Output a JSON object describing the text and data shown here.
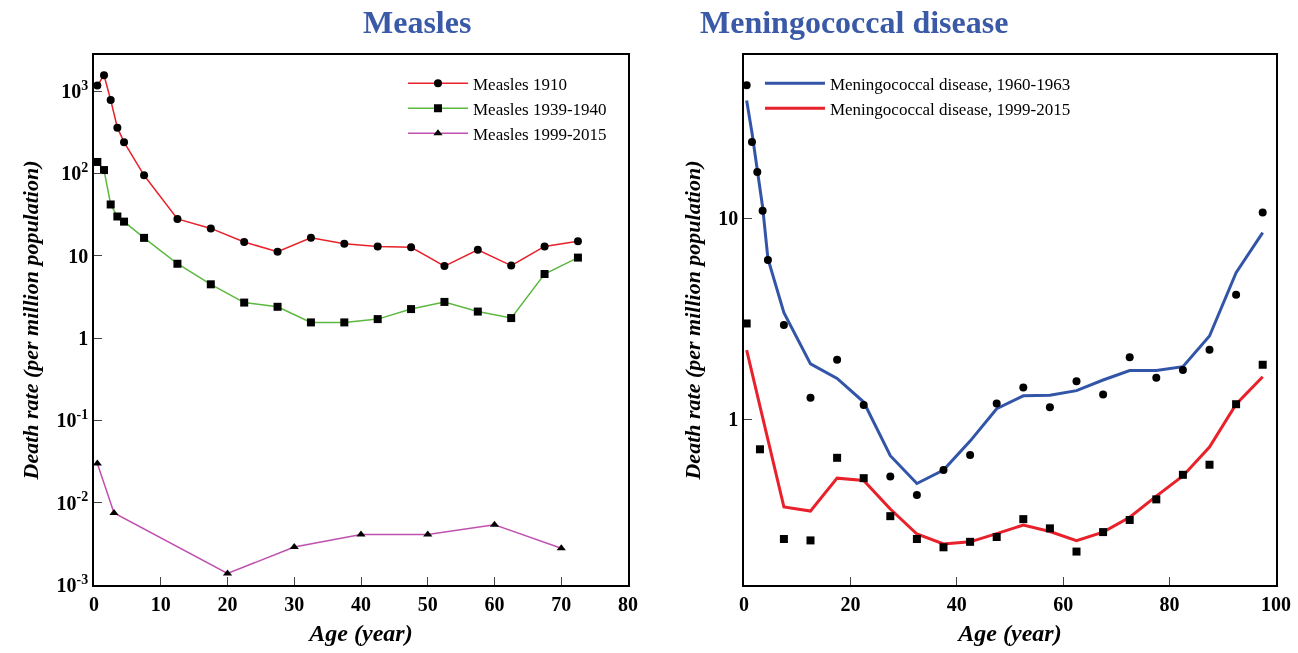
{
  "chart_data": [
    {
      "type": "line",
      "title": "Measles",
      "xlabel": "Age (year)",
      "ylabel": "Death rate (per million population)",
      "log": "y",
      "xlim": [
        0,
        80
      ],
      "xticks": [
        0,
        10,
        20,
        30,
        40,
        50,
        60,
        70,
        80
      ],
      "ylim": [
        0.001,
        2750
      ],
      "yticks": [
        {
          "value": 0.001,
          "label": "10$^{-3}$"
        },
        {
          "value": 0.01,
          "label": "10$^{-2}$"
        },
        {
          "value": 0.1,
          "label": "10$^{-1}$"
        },
        1,
        10,
        {
          "value": 100,
          "label": "10$^{2}$"
        },
        {
          "value": 1000,
          "label": "10$^{3}$"
        }
      ],
      "legend": "top right",
      "series": [
        {
          "name": "Measles 1910",
          "color": "#e8212b",
          "marker": "circle",
          "x": [
            0.5,
            1.5,
            2.5,
            3.5,
            4.5,
            7.5,
            12.5,
            17.5,
            22.5,
            27.5,
            32.5,
            37.5,
            42.5,
            47.5,
            52.5,
            57.5,
            62.5,
            67.5,
            72.5
          ],
          "values": [
            1170,
            1560,
            780,
            360,
            240,
            95,
            28,
            21.5,
            14.7,
            11.2,
            16.5,
            14,
            13,
            12.7,
            7.5,
            11.8,
            7.6,
            13,
            15
          ]
        },
        {
          "name": "Measles 1939-1940",
          "color": "#5cb840",
          "marker": "square",
          "x": [
            0.5,
            1.5,
            2.5,
            3.5,
            4.5,
            7.5,
            12.5,
            17.5,
            22.5,
            27.5,
            32.5,
            37.5,
            42.5,
            47.5,
            52.5,
            57.5,
            62.5,
            67.5,
            72.5
          ],
          "values": [
            138,
            110,
            42,
            30,
            26,
            16.5,
            8.0,
            4.5,
            2.7,
            2.4,
            1.55,
            1.55,
            1.7,
            2.25,
            2.75,
            2.1,
            1.75,
            6.0,
            9.5
          ]
        },
        {
          "name": "Measles 1999-2015",
          "color": "#c050b0",
          "marker": "triangle",
          "x": [
            0.5,
            3,
            20,
            30,
            40,
            50,
            60,
            70
          ],
          "values": [
            0.03,
            0.0075,
            0.00138,
            0.0029,
            0.0041,
            0.0041,
            0.0054,
            0.0028
          ]
        }
      ]
    },
    {
      "type": "line",
      "title": "Meningococcal disease",
      "xlabel": "Age (year)",
      "ylabel": "Death rate (per million population)",
      "log": "y",
      "xlim": [
        0,
        100
      ],
      "xticks": [
        0,
        20,
        40,
        60,
        80,
        100
      ],
      "ylim": [
        0.15,
        65
      ],
      "yticks": [
        1,
        10
      ],
      "legend": "top left",
      "series": [
        {
          "name": "Meningococcal disease, 1960-1963",
          "color": "#3355a8",
          "x": [
            0.5,
            1.5,
            2.5,
            3.5,
            4.5,
            7.5,
            12.5,
            17.5,
            22.5,
            27.5,
            32.5,
            37.5,
            42.5,
            47.5,
            52.5,
            57.5,
            62.5,
            67.5,
            72.5,
            77.5,
            82.5,
            87.5,
            92.5,
            97.5
          ],
          "values": [
            38.6,
            26.7,
            17.4,
            11.4,
            6.3,
            3.4,
            1.89,
            1.6,
            1.22,
            0.66,
            0.48,
            0.56,
            0.78,
            1.13,
            1.31,
            1.32,
            1.39,
            1.57,
            1.75,
            1.75,
            1.83,
            2.6,
            5.37,
            8.5
          ]
        },
        {
          "name": "Meningococcal disease, 1999-2015",
          "color": "#e8212b",
          "x": [
            0.5,
            7.5,
            12.5,
            17.5,
            22.5,
            27.5,
            32.5,
            37.5,
            42.5,
            47.5,
            52.5,
            57.5,
            62.5,
            67.5,
            72.5,
            77.5,
            82.5,
            87.5,
            92.5,
            97.5
          ],
          "values": [
            2.21,
            0.367,
            0.35,
            0.51,
            0.497,
            0.358,
            0.269,
            0.24,
            0.246,
            0.27,
            0.298,
            0.277,
            0.249,
            0.275,
            0.326,
            0.415,
            0.523,
            0.728,
            1.19,
            1.63
          ]
        },
        {
          "type": "scatter",
          "color": "#000000",
          "marker": "circle",
          "x": [
            0.5,
            1.5,
            2.5,
            3.5,
            4.5,
            7.5,
            12.5,
            17.5,
            22.5,
            27.5,
            32.5,
            37.5,
            42.5,
            47.5,
            52.5,
            57.5,
            62.5,
            67.5,
            72.5,
            77.5,
            82.5,
            87.5,
            92.5,
            97.5
          ],
          "values": [
            46,
            24,
            17,
            10.9,
            6.2,
            2.95,
            1.28,
            1.98,
            1.18,
            0.52,
            0.42,
            0.56,
            0.665,
            1.2,
            1.44,
            1.15,
            1.55,
            1.33,
            2.04,
            1.61,
            1.76,
            2.22,
            4.17,
            10.7
          ]
        },
        {
          "type": "scatter",
          "color": "#000000",
          "marker": "square",
          "x": [
            0.5,
            3,
            7.5,
            12.5,
            17.5,
            22.5,
            27.5,
            32.5,
            37.5,
            42.5,
            47.5,
            52.5,
            57.5,
            62.5,
            67.5,
            72.5,
            77.5,
            82.5,
            87.5,
            92.5,
            97.5
          ],
          "values": [
            3.0,
            0.71,
            0.254,
            0.25,
            0.644,
            0.51,
            0.33,
            0.254,
            0.231,
            0.246,
            0.26,
            0.319,
            0.287,
            0.22,
            0.275,
            0.316,
            0.4,
            0.53,
            0.595,
            1.19,
            1.87
          ]
        }
      ]
    }
  ]
}
